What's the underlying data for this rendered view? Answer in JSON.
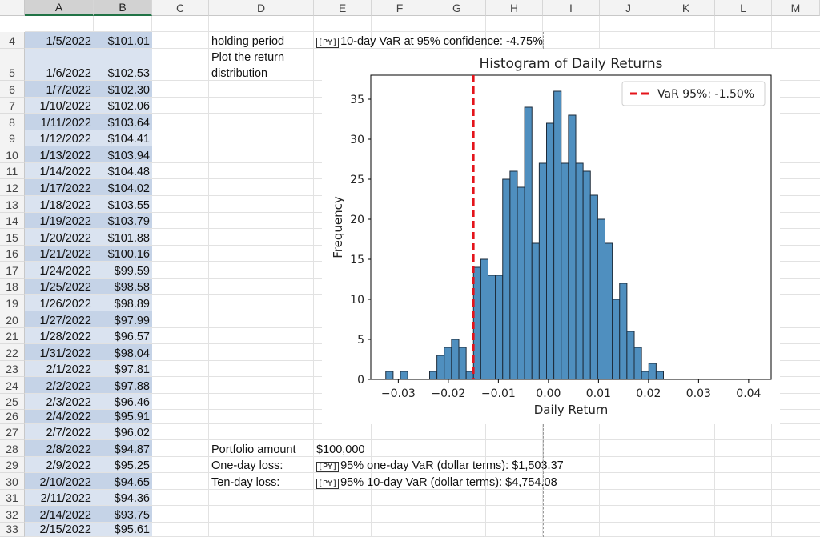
{
  "columns": [
    "A",
    "B",
    "C",
    "D",
    "E",
    "F",
    "G",
    "H",
    "I",
    "J",
    "K",
    "L",
    "M"
  ],
  "rows": [
    {
      "num": "4",
      "date": "1/5/2022",
      "price": "$101.01"
    },
    {
      "num": "5",
      "date": "1/6/2022",
      "price": "$102.53"
    },
    {
      "num": "6",
      "date": "1/7/2022",
      "price": "$102.30"
    },
    {
      "num": "7",
      "date": "1/10/2022",
      "price": "$102.06"
    },
    {
      "num": "8",
      "date": "1/11/2022",
      "price": "$103.64"
    },
    {
      "num": "9",
      "date": "1/12/2022",
      "price": "$104.41"
    },
    {
      "num": "10",
      "date": "1/13/2022",
      "price": "$103.94"
    },
    {
      "num": "11",
      "date": "1/14/2022",
      "price": "$104.48"
    },
    {
      "num": "12",
      "date": "1/17/2022",
      "price": "$104.02"
    },
    {
      "num": "13",
      "date": "1/18/2022",
      "price": "$103.55"
    },
    {
      "num": "14",
      "date": "1/19/2022",
      "price": "$103.79"
    },
    {
      "num": "15",
      "date": "1/20/2022",
      "price": "$101.88"
    },
    {
      "num": "16",
      "date": "1/21/2022",
      "price": "$100.16"
    },
    {
      "num": "17",
      "date": "1/24/2022",
      "price": "$99.59"
    },
    {
      "num": "18",
      "date": "1/25/2022",
      "price": "$98.58"
    },
    {
      "num": "19",
      "date": "1/26/2022",
      "price": "$98.89"
    },
    {
      "num": "20",
      "date": "1/27/2022",
      "price": "$97.99"
    },
    {
      "num": "21",
      "date": "1/28/2022",
      "price": "$96.57"
    },
    {
      "num": "22",
      "date": "1/31/2022",
      "price": "$98.04"
    },
    {
      "num": "23",
      "date": "2/1/2022",
      "price": "$97.81"
    },
    {
      "num": "24",
      "date": "2/2/2022",
      "price": "$97.88"
    },
    {
      "num": "25",
      "date": "2/3/2022",
      "price": "$96.46"
    },
    {
      "num": "26",
      "date": "2/4/2022",
      "price": "$95.91"
    },
    {
      "num": "27",
      "date": "2/7/2022",
      "price": "$96.02"
    },
    {
      "num": "28",
      "date": "2/8/2022",
      "price": "$94.87"
    },
    {
      "num": "29",
      "date": "2/9/2022",
      "price": "$95.25"
    },
    {
      "num": "30",
      "date": "2/10/2022",
      "price": "$94.65"
    },
    {
      "num": "31",
      "date": "2/11/2022",
      "price": "$94.36"
    },
    {
      "num": "32",
      "date": "2/14/2022",
      "price": "$93.75"
    },
    {
      "num": "33",
      "date": "2/15/2022",
      "price": "$95.61"
    }
  ],
  "cells": {
    "d4": "holding period",
    "e4": "10-day VaR at 95% confidence: -4.75%",
    "d5a": "Plot the return",
    "d5b": "distribution",
    "d28": "Portfolio amount",
    "e28": "$100,000",
    "d29": "One-day loss:",
    "e29": "95% one-day VaR (dollar terms): $1,503.37",
    "d30": "Ten-day loss:",
    "e30": "95% 10-day VaR (dollar terms): $4,754.08",
    "py_icon": "[PY]"
  },
  "chart_data": {
    "type": "bar",
    "title": "Histogram of Daily Returns",
    "xlabel": "Daily Return",
    "ylabel": "Frequency",
    "xlim": [
      -0.0355,
      0.0445
    ],
    "ylim": [
      0,
      38
    ],
    "xticks": [
      -0.03,
      -0.02,
      -0.01,
      0.0,
      0.01,
      0.02,
      0.03,
      0.04
    ],
    "xtick_labels": [
      "−0.03",
      "−0.02",
      "−0.01",
      "0.00",
      "0.01",
      "0.02",
      "0.03",
      "0.04"
    ],
    "yticks": [
      0,
      5,
      10,
      15,
      20,
      25,
      30,
      35
    ],
    "bin_start": -0.0325,
    "bin_width": 0.00146,
    "counts": [
      1,
      0,
      1,
      0,
      0,
      0,
      1,
      3,
      4,
      5,
      4,
      1,
      14,
      15,
      13,
      13,
      25,
      26,
      24,
      34,
      17,
      27,
      32,
      36,
      27,
      33,
      27,
      26,
      23,
      20,
      17,
      10,
      12,
      6,
      4,
      1,
      2,
      1,
      0,
      0,
      0,
      0,
      0,
      0,
      0,
      0,
      0,
      0,
      0,
      0
    ],
    "vline": {
      "value": -0.015,
      "label": "VaR 95%: -1.50%",
      "color": "#e4141b"
    },
    "bar_color": "#4f8fbf",
    "bar_edge": "#1d2b3a",
    "legend_position": "upper right"
  }
}
